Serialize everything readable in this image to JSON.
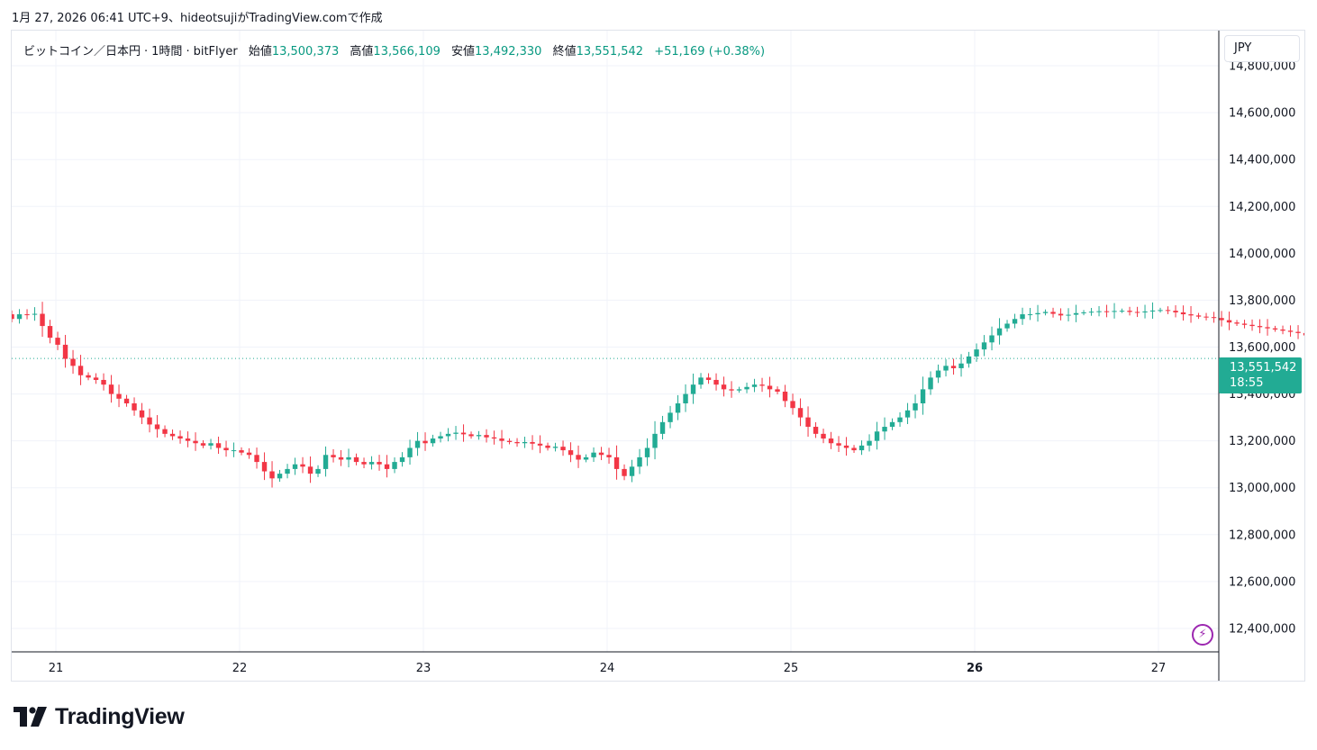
{
  "caption": "1月 27, 2026 06:41 UTC+9、hideotsujiがTradingView.comで作成",
  "legend": {
    "symbol": "ビットコイン／日本円",
    "interval": "1時間",
    "exchange": "bitFlyer",
    "open_label": "始値",
    "open": "13,500,373",
    "high_label": "高値",
    "high": "13,566,109",
    "low_label": "安値",
    "low": "13,492,330",
    "close_label": "終値",
    "close": "13,551,542",
    "change": "+51,169 (+0.38%)"
  },
  "currency": "JPY",
  "last_price": {
    "price": "13,551,542",
    "countdown": "18:55"
  },
  "bolt_icon": "⚡",
  "brand": {
    "name": "TradingView"
  },
  "colors": {
    "up": "#22ab94",
    "down": "#f23645",
    "accent": "#089981",
    "price_tag": "#22ab94",
    "grid": "#f0f3fa",
    "bolt": "#9c27b0"
  },
  "chart_data": {
    "type": "candlestick",
    "interval": "1h",
    "currency": "JPY",
    "ylim": [
      12300000,
      14950000
    ],
    "y_ticks": [
      {
        "value": 14800000,
        "label": "14,800,000"
      },
      {
        "value": 14600000,
        "label": "14,600,000"
      },
      {
        "value": 14400000,
        "label": "14,400,000"
      },
      {
        "value": 14200000,
        "label": "14,200,000"
      },
      {
        "value": 14000000,
        "label": "14,000,000"
      },
      {
        "value": 13800000,
        "label": "13,800,000"
      },
      {
        "value": 13600000,
        "label": "13,600,000"
      },
      {
        "value": 13400000,
        "label": "13,400,000"
      },
      {
        "value": 13200000,
        "label": "13,200,000"
      },
      {
        "value": 13000000,
        "label": "13,000,000"
      },
      {
        "value": 12800000,
        "label": "12,800,000"
      },
      {
        "value": 12600000,
        "label": "12,600,000"
      },
      {
        "value": 12400000,
        "label": "12,400,000"
      }
    ],
    "x_ticks": [
      {
        "day": 21,
        "label": "21"
      },
      {
        "day": 22,
        "label": "22"
      },
      {
        "day": 23,
        "label": "23"
      },
      {
        "day": 24,
        "label": "24"
      },
      {
        "day": 25,
        "label": "25"
      },
      {
        "day": 26,
        "label": "26",
        "bold": true
      },
      {
        "day": 27,
        "label": "27"
      }
    ],
    "x_first_day": 20.76,
    "last_price": 13551542,
    "closes": [
      13720000,
      13740000,
      13738000,
      13742000,
      13690000,
      13640000,
      13610000,
      13550000,
      13520000,
      13480000,
      13470000,
      13460000,
      13440000,
      13400000,
      13380000,
      13360000,
      13330000,
      13300000,
      13270000,
      13250000,
      13230000,
      13220000,
      13210000,
      13200000,
      13190000,
      13180000,
      13190000,
      13170000,
      13160000,
      13160000,
      13150000,
      13140000,
      13110000,
      13070000,
      13040000,
      13060000,
      13080000,
      13100000,
      13090000,
      13060000,
      13080000,
      13140000,
      13130000,
      13120000,
      13130000,
      13110000,
      13100000,
      13110000,
      13100000,
      13080000,
      13110000,
      13130000,
      13170000,
      13200000,
      13190000,
      13210000,
      13220000,
      13230000,
      13235000,
      13228000,
      13220000,
      13225000,
      13215000,
      13210000,
      13200000,
      13195000,
      13190000,
      13195000,
      13188000,
      13180000,
      13170000,
      13175000,
      13160000,
      13140000,
      13120000,
      13130000,
      13150000,
      13140000,
      13130000,
      13080000,
      13050000,
      13090000,
      13130000,
      13170000,
      13230000,
      13280000,
      13320000,
      13360000,
      13400000,
      13440000,
      13470000,
      13460000,
      13440000,
      13420000,
      13415000,
      13420000,
      13430000,
      13440000,
      13435000,
      13420000,
      13410000,
      13370000,
      13340000,
      13300000,
      13260000,
      13230000,
      13210000,
      13190000,
      13180000,
      13170000,
      13160000,
      13180000,
      13200000,
      13240000,
      13260000,
      13280000,
      13300000,
      13330000,
      13360000,
      13420000,
      13470000,
      13500000,
      13520000,
      13510000,
      13530000,
      13560000,
      13590000,
      13620000,
      13650000,
      13680000,
      13700000,
      13720000,
      13740000,
      13740000,
      13745000,
      13750000,
      13742000,
      13735000,
      13738000,
      13745000,
      13748000,
      13751000,
      13753000,
      13752000,
      13754000,
      13755000,
      13750000,
      13748000,
      13752000,
      13756000,
      13758000,
      13755000,
      13748000,
      13740000,
      13735000,
      13730000,
      13728000,
      13724000,
      13715000,
      13705000,
      13700000,
      13695000,
      13690000,
      13685000,
      13680000,
      13675000,
      13670000,
      13665000,
      13660000,
      13650000,
      13640000,
      13630000,
      13620000,
      13610000,
      13590000,
      13570000,
      13560000,
      13551542
    ]
  }
}
